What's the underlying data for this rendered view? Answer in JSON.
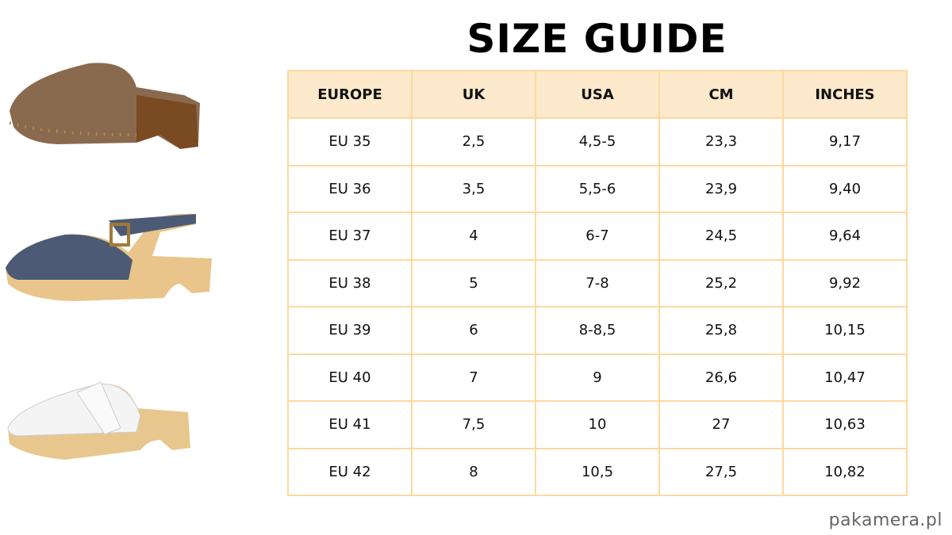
{
  "title": "SIZE GUIDE",
  "table": {
    "headers": [
      "EUROPE",
      "UK",
      "USA",
      "CM",
      "INCHES"
    ],
    "rows": [
      [
        "EU 35",
        "2,5",
        "4,5-5",
        "23,3",
        "9,17"
      ],
      [
        "EU 36",
        "3,5",
        "5,5-6",
        "23,9",
        "9,40"
      ],
      [
        "EU 37",
        "4",
        "6-7",
        "24,5",
        "9,64"
      ],
      [
        "EU 38",
        "5",
        "7-8",
        "25,2",
        "9,92"
      ],
      [
        "EU 39",
        "6",
        "8-8,5",
        "25,8",
        "10,15"
      ],
      [
        "EU 40",
        "7",
        "9",
        "26,6",
        "10,47"
      ],
      [
        "EU 41",
        "7,5",
        "10",
        "27",
        "10,63"
      ],
      [
        "EU 42",
        "8",
        "10,5",
        "27,5",
        "10,82"
      ]
    ]
  },
  "colors": {
    "header_bg": "#fde9cb",
    "border": "#fcd9a0"
  },
  "watermark": "pakamera.pl"
}
